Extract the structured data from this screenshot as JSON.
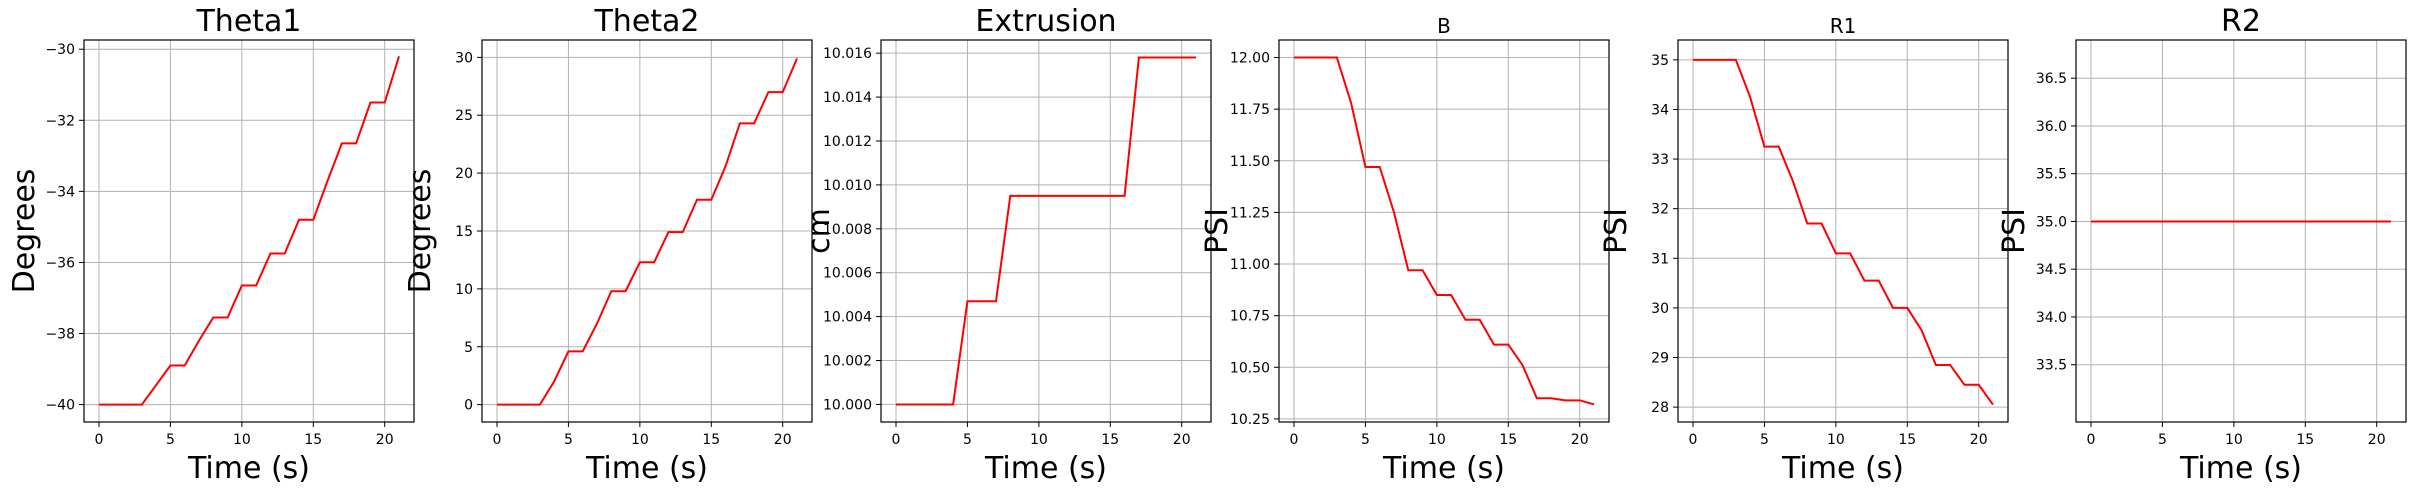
{
  "chart_data": [
    {
      "type": "line",
      "title": "Theta1",
      "xlabel": "Time (s)",
      "ylabel": "Degrees",
      "xlim": [
        -1.05,
        22.05
      ],
      "ylim": [
        -40.49,
        -29.74
      ],
      "xticks": [
        0,
        5,
        10,
        15,
        20
      ],
      "yticks": [
        -40,
        -38,
        -36,
        -34,
        -32,
        -30
      ],
      "grid": true,
      "series": [
        {
          "color": "#ff0000",
          "x": [
            0,
            1,
            2,
            3,
            4,
            5,
            6,
            7,
            8,
            9,
            10,
            11,
            12,
            13,
            14,
            15,
            16,
            17,
            18,
            19,
            20,
            21
          ],
          "y": [
            -40,
            -40,
            -40,
            -40,
            -39.45,
            -38.9,
            -38.9,
            -38.2,
            -37.55,
            -37.55,
            -36.65,
            -36.65,
            -35.75,
            -35.75,
            -34.8,
            -34.8,
            -33.7,
            -32.65,
            -32.65,
            -31.5,
            -31.5,
            -30.2
          ]
        }
      ]
    },
    {
      "type": "line",
      "title": "Theta2",
      "xlabel": "Time (s)",
      "ylabel": "Degrees",
      "xlim": [
        -1.05,
        22.05
      ],
      "ylim": [
        -1.5,
        31.5
      ],
      "xticks": [
        0,
        5,
        10,
        15,
        20
      ],
      "yticks": [
        0,
        5,
        10,
        15,
        20,
        25,
        30
      ],
      "grid": true,
      "series": [
        {
          "color": "#ff0000",
          "x": [
            0,
            1,
            2,
            3,
            4,
            5,
            6,
            7,
            8,
            9,
            10,
            11,
            12,
            13,
            14,
            15,
            16,
            17,
            18,
            19,
            20,
            21
          ],
          "y": [
            0,
            0,
            0,
            0,
            2,
            4.6,
            4.6,
            7,
            9.8,
            9.8,
            12.3,
            12.3,
            14.9,
            14.9,
            17.7,
            17.7,
            20.6,
            24.3,
            24.3,
            27,
            27,
            29.9
          ]
        }
      ]
    },
    {
      "type": "line",
      "title": "Extrusion",
      "xlabel": "Time (s)",
      "ylabel": "cm",
      "xlim": [
        -1.05,
        22.05
      ],
      "ylim": [
        9.9992,
        10.0166
      ],
      "xticks": [
        0,
        5,
        10,
        15,
        20
      ],
      "yticks": [
        10.0,
        10.002,
        10.004,
        10.006,
        10.008,
        10.01,
        10.012,
        10.014,
        10.016
      ],
      "ytick_labels": [
        "10.000",
        "10.002",
        "10.004",
        "10.006",
        "10.008",
        "10.010",
        "10.012",
        "10.014",
        "10.016"
      ],
      "grid": true,
      "series": [
        {
          "color": "#ff0000",
          "x": [
            0,
            4,
            5,
            7,
            8,
            16,
            17,
            21
          ],
          "y": [
            10.0,
            10.0,
            10.0047,
            10.0047,
            10.0095,
            10.0095,
            10.0158,
            10.0158
          ]
        }
      ]
    },
    {
      "type": "line",
      "title": "B",
      "xlabel": "Time (s)",
      "ylabel": "PSI",
      "xlim": [
        -1.05,
        22.05
      ],
      "ylim": [
        10.235,
        12.085
      ],
      "xticks": [
        0,
        5,
        10,
        15,
        20
      ],
      "yticks": [
        10.25,
        10.5,
        10.75,
        11.0,
        11.25,
        11.5,
        11.75,
        12.0
      ],
      "ytick_labels": [
        "10.25",
        "10.50",
        "10.75",
        "11.00",
        "11.25",
        "11.50",
        "11.75",
        "12.00"
      ],
      "grid": true,
      "series": [
        {
          "color": "#ff0000",
          "x": [
            0,
            1,
            2,
            3,
            4,
            5,
            6,
            7,
            8,
            9,
            10,
            11,
            12,
            13,
            14,
            15,
            16,
            17,
            18,
            19,
            20,
            21
          ],
          "y": [
            12.0,
            12.0,
            12.0,
            12.0,
            11.78,
            11.47,
            11.47,
            11.25,
            10.97,
            10.97,
            10.85,
            10.85,
            10.73,
            10.73,
            10.61,
            10.61,
            10.51,
            10.35,
            10.35,
            10.34,
            10.34,
            10.32
          ]
        }
      ]
    },
    {
      "type": "line",
      "title": "R1",
      "xlabel": "Time (s)",
      "ylabel": "PSI",
      "xlim": [
        -1.05,
        22.05
      ],
      "ylim": [
        27.7,
        35.4
      ],
      "xticks": [
        0,
        5,
        10,
        15,
        20
      ],
      "yticks": [
        28,
        29,
        30,
        31,
        32,
        33,
        34,
        35
      ],
      "grid": true,
      "series": [
        {
          "color": "#ff0000",
          "x": [
            0,
            1,
            2,
            3,
            4,
            5,
            6,
            7,
            8,
            9,
            10,
            11,
            12,
            13,
            14,
            15,
            16,
            17,
            18,
            19,
            20,
            21
          ],
          "y": [
            35,
            35,
            35,
            35,
            34.25,
            33.25,
            33.25,
            32.55,
            31.7,
            31.7,
            31.1,
            31.1,
            30.55,
            30.55,
            30.0,
            30.0,
            29.55,
            28.85,
            28.85,
            28.45,
            28.45,
            28.05
          ]
        }
      ]
    },
    {
      "type": "line",
      "title": "R2",
      "xlabel": "Time (s)",
      "ylabel": "PSI",
      "xlim": [
        -1.05,
        22.05
      ],
      "ylim": [
        32.9,
        36.9
      ],
      "xticks": [
        0,
        5,
        10,
        15,
        20
      ],
      "yticks": [
        33.5,
        34.0,
        34.5,
        35.0,
        35.5,
        36.0,
        36.5
      ],
      "ytick_labels": [
        "33.5",
        "34.0",
        "34.5",
        "35.0",
        "35.5",
        "36.0",
        "36.5"
      ],
      "grid": true,
      "series": [
        {
          "color": "#ff0000",
          "x": [
            0,
            21
          ],
          "y": [
            35,
            35
          ]
        }
      ]
    }
  ]
}
